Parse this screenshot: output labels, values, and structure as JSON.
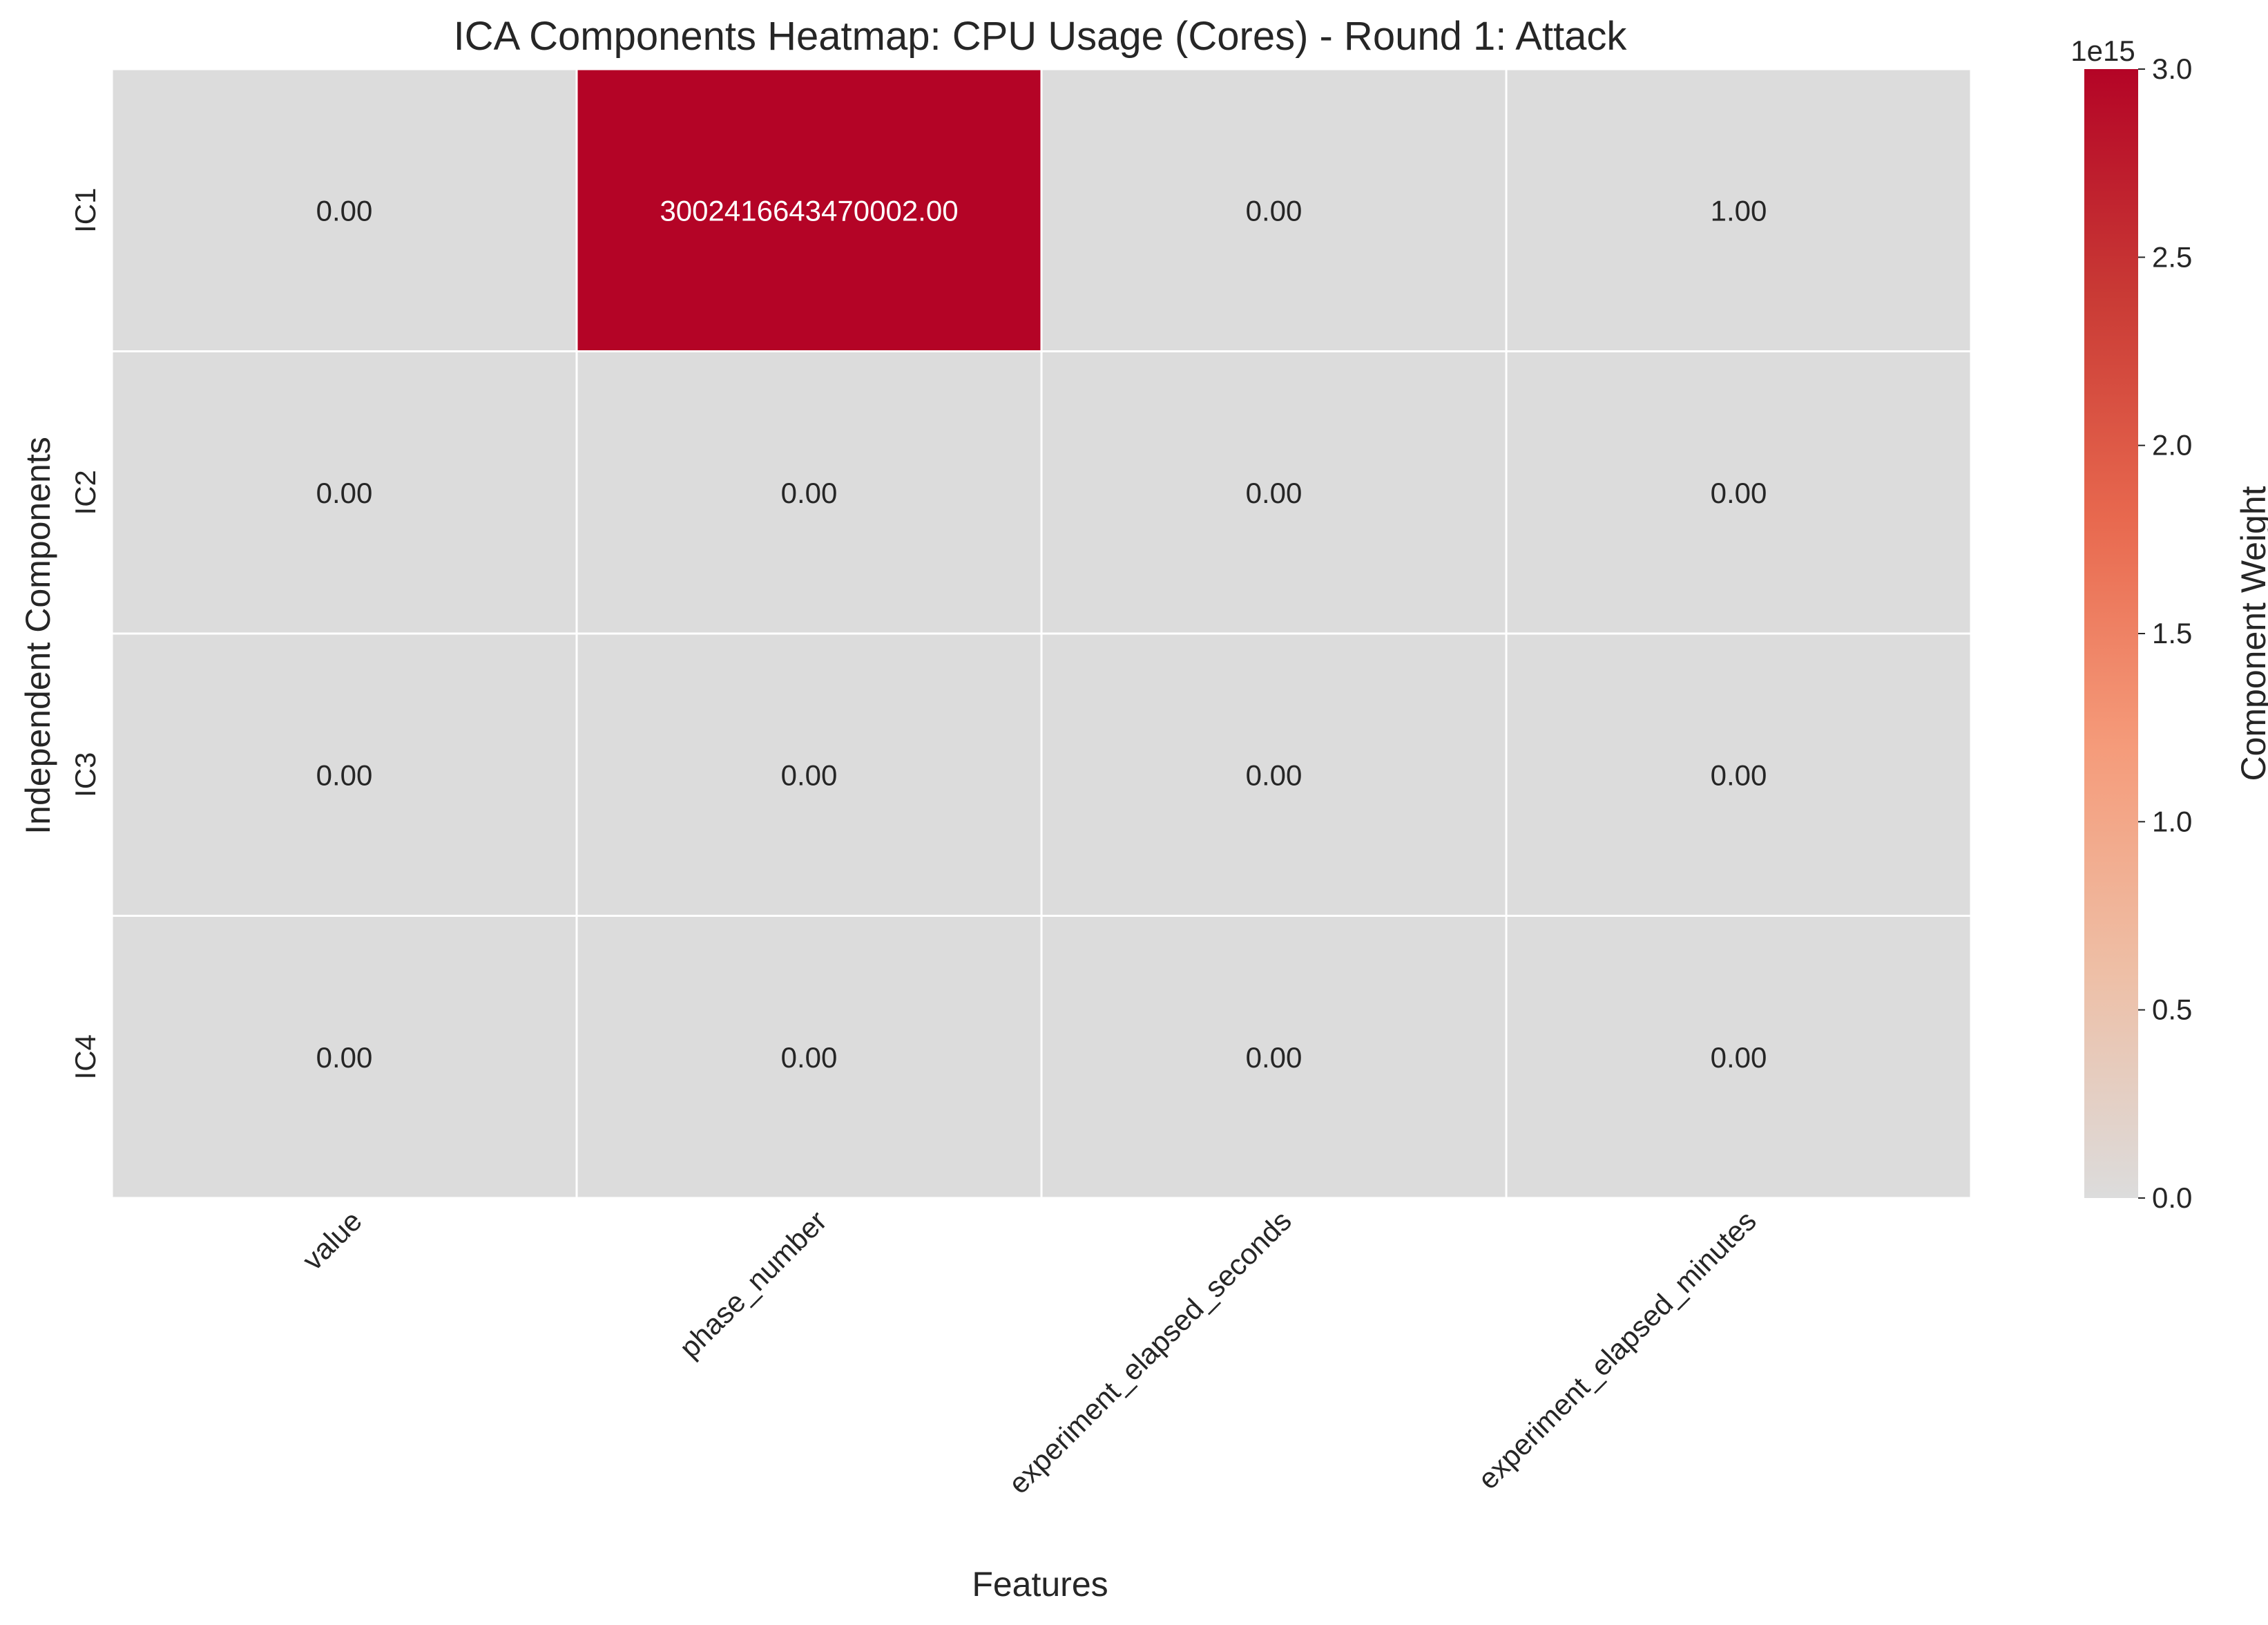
{
  "chart_data": {
    "type": "heatmap",
    "title": "ICA Components Heatmap: CPU Usage (Cores) - Round 1: Attack",
    "xlabel": "Features",
    "ylabel": "Independent Components",
    "x_categories": [
      "value",
      "phase_number",
      "experiment_elapsed_seconds",
      "experiment_elapsed_minutes"
    ],
    "y_categories": [
      "IC1",
      "IC2",
      "IC3",
      "IC4"
    ],
    "values": [
      [
        0.0,
        3002416643470002.0,
        0.0,
        1.0
      ],
      [
        0.0,
        0.0,
        0.0,
        0.0
      ],
      [
        0.0,
        0.0,
        0.0,
        0.0
      ],
      [
        0.0,
        0.0,
        0.0,
        0.0
      ]
    ],
    "cell_labels": [
      [
        "0.00",
        "3002416643470002.00",
        "0.00",
        "1.00"
      ],
      [
        "0.00",
        "0.00",
        "0.00",
        "0.00"
      ],
      [
        "0.00",
        "0.00",
        "0.00",
        "0.00"
      ],
      [
        "0.00",
        "0.00",
        "0.00",
        "0.00"
      ]
    ],
    "colorbar": {
      "label": "Component Weight",
      "offset_label": "1e15",
      "range": [
        0,
        3000000000000000.0
      ],
      "ticks": [
        0.0,
        0.5,
        1.0,
        1.5,
        2.0,
        2.5,
        3.0
      ],
      "tick_labels": [
        "0.0",
        "0.5",
        "1.0",
        "1.5",
        "2.0",
        "2.5",
        "3.0"
      ],
      "colors": [
        "#dcdcdc",
        "#eebfa6",
        "#f59b7a",
        "#e8694f",
        "#c93a35",
        "#b40426"
      ]
    }
  }
}
